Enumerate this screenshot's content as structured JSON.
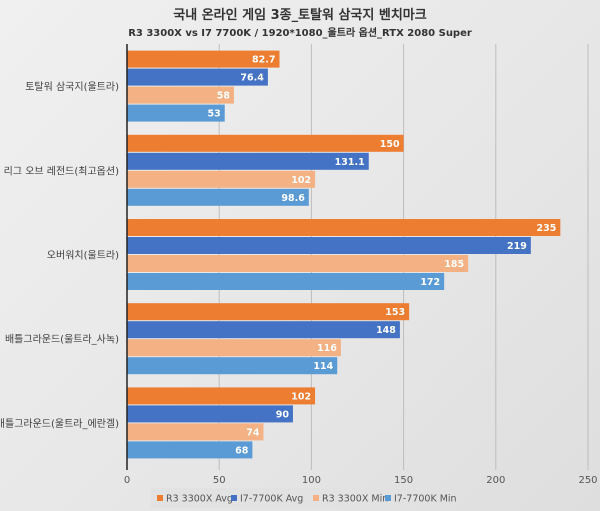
{
  "chart_data": {
    "type": "bar",
    "orientation": "horizontal",
    "title": "국내 온라인 게임 3종_토탈워 삼국지 벤치마크",
    "subtitle": "R3 3300X vs I7 7700K / 1920*1080_울트라 옵션_RTX 2080 Super",
    "categories": [
      "토탈워 삼국지(울트라)",
      "리그 오브 레전드(최고옵션)",
      "오버워치(울트라)",
      "배틀그라운드(울트라_사녹)",
      "배틀그라운드(울트라_에란겔)"
    ],
    "series": [
      {
        "name": "R3 3300X Avg",
        "color": "#ed7d31",
        "values": [
          82.7,
          150,
          235,
          153,
          102
        ],
        "labels": [
          "82.7",
          "150",
          "235",
          "153",
          "102"
        ]
      },
      {
        "name": "I7-7700K Avg",
        "color": "#4472c4",
        "values": [
          76.4,
          131.1,
          219,
          148,
          90
        ],
        "labels": [
          "76.4",
          "131.1",
          "219",
          "148",
          "90"
        ]
      },
      {
        "name": "R3 3300X Min",
        "color": "#f4b183",
        "values": [
          58,
          102,
          185,
          116,
          74
        ],
        "labels": [
          "58",
          "102",
          "185",
          "116",
          "74"
        ]
      },
      {
        "name": "I7-7700K Min",
        "color": "#5b9bd5",
        "values": [
          53,
          98.6,
          172,
          114,
          68
        ],
        "labels": [
          "53",
          "98.6",
          "172",
          "114",
          "68"
        ]
      }
    ],
    "xlim": [
      0,
      250
    ],
    "xticks": [
      0,
      50,
      100,
      150,
      200,
      250
    ],
    "xtick_labels": [
      "0",
      "50",
      "100",
      "150",
      "200",
      "250"
    ],
    "xlabel": "",
    "ylabel": "",
    "grid": true,
    "legend_position": "bottom"
  }
}
